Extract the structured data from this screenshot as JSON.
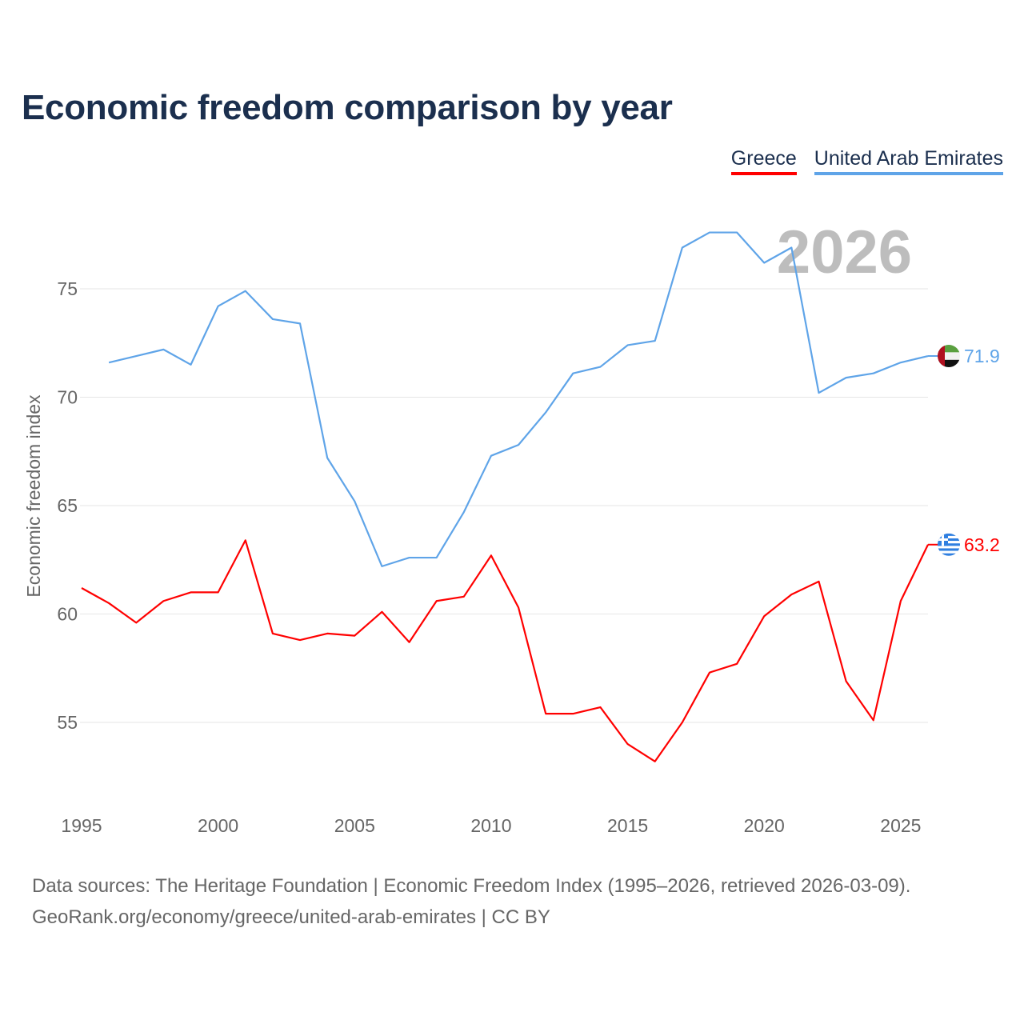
{
  "title": "Economic freedom comparison by year",
  "colors": {
    "greece": "#ff0000",
    "uae": "#5fa4e8",
    "grid": "#e6e6e6",
    "year_watermark": "#bdbdbd"
  },
  "footer": {
    "line1": "Data sources: The Heritage Foundation | Economic Freedom Index (1995–2026, retrieved 2026-03-09).",
    "line2": "GeoRank.org/economy/greece/united-arab-emirates | CC BY"
  },
  "chart_data": {
    "type": "line",
    "title": "Economic freedom comparison by year",
    "ylabel": "Economic freedom index",
    "xlabel": "",
    "year_watermark": "2026",
    "xlim": [
      1995,
      2026
    ],
    "ylim": [
      51.5,
      79
    ],
    "x_ticks": [
      "1995",
      "2000",
      "2005",
      "2010",
      "2015",
      "2020",
      "2025"
    ],
    "y_ticks": [
      "55",
      "60",
      "65",
      "70",
      "75"
    ],
    "grid": true,
    "legend_position": "top-right",
    "series": [
      {
        "name": "Greece",
        "color": "#ff0000",
        "end_label": "63.2",
        "flag": "greece-flag-icon",
        "x": [
          1995,
          1996,
          1997,
          1998,
          1999,
          2000,
          2001,
          2002,
          2003,
          2004,
          2005,
          2006,
          2007,
          2008,
          2009,
          2010,
          2011,
          2012,
          2013,
          2014,
          2015,
          2016,
          2017,
          2018,
          2019,
          2020,
          2021,
          2022,
          2023,
          2024,
          2025,
          2026
        ],
        "values": [
          61.2,
          60.5,
          59.6,
          60.6,
          61.0,
          61.0,
          63.4,
          59.1,
          58.8,
          59.1,
          59.0,
          60.1,
          58.7,
          60.6,
          60.8,
          62.7,
          60.3,
          55.4,
          55.4,
          55.7,
          54.0,
          53.2,
          55.0,
          57.3,
          57.7,
          59.9,
          60.9,
          61.5,
          56.9,
          55.1,
          60.6,
          63.2
        ]
      },
      {
        "name": "United Arab Emirates",
        "color": "#5fa4e8",
        "end_label": "71.9",
        "flag": "uae-flag-icon",
        "x": [
          1996,
          1997,
          1998,
          1999,
          2000,
          2001,
          2002,
          2003,
          2004,
          2005,
          2006,
          2007,
          2008,
          2009,
          2010,
          2011,
          2012,
          2013,
          2014,
          2015,
          2016,
          2017,
          2018,
          2019,
          2020,
          2021,
          2022,
          2023,
          2024,
          2025,
          2026
        ],
        "values": [
          71.6,
          71.9,
          72.2,
          71.5,
          74.2,
          74.9,
          73.6,
          73.4,
          67.2,
          65.2,
          62.2,
          62.6,
          62.6,
          64.7,
          67.3,
          67.8,
          69.3,
          71.1,
          71.4,
          72.4,
          72.6,
          76.9,
          77.6,
          77.6,
          76.2,
          76.9,
          70.2,
          70.9,
          71.1,
          71.6,
          71.9
        ]
      }
    ]
  }
}
